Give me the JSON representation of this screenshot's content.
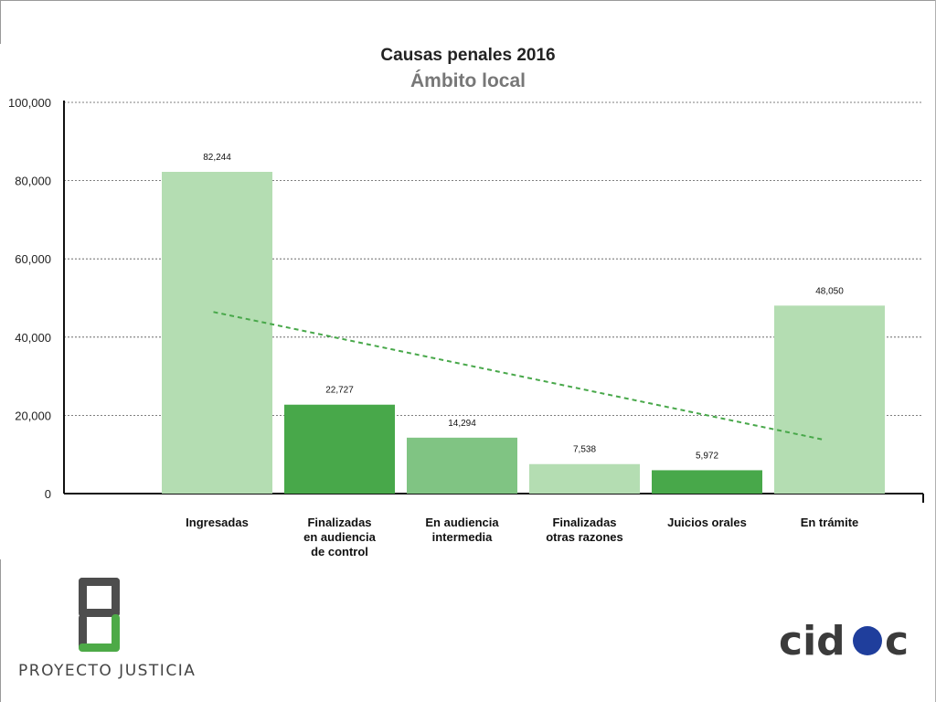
{
  "chart_data": {
    "type": "bar",
    "title": "Causas penales 2016",
    "subtitle": "Ámbito local",
    "categories": [
      [
        "Ingresadas"
      ],
      [
        "Finalizadas",
        "en audiencia",
        "de control"
      ],
      [
        "En audiencia",
        "intermedia"
      ],
      [
        "Finalizadas",
        "otras razones"
      ],
      [
        "Juicios orales"
      ],
      [
        "En trámite"
      ]
    ],
    "values": [
      82244,
      22727,
      14294,
      7538,
      5972,
      48050
    ],
    "value_labels": [
      "82,244",
      "22,727",
      "14,294",
      "7,538",
      "5,972",
      "48,050"
    ],
    "bar_colors": [
      "#b4ddb2",
      "#48a84a",
      "#80c483",
      "#b4ddb2",
      "#48a84a",
      "#b4ddb2"
    ],
    "yticks": [
      0,
      20000,
      40000,
      60000,
      80000,
      100000
    ],
    "ytick_labels": [
      "0",
      "20,000",
      "40,000",
      "60,000",
      "80,000",
      "100,000"
    ],
    "ylim": [
      0,
      100000
    ],
    "grid": "horizontal dashed",
    "trendline": {
      "type": "linear",
      "color": "#48a84a",
      "style": "dashed"
    }
  },
  "logos": {
    "proyecto_justicia": "PROYECTO JUSTICIA",
    "cidac": "cidac"
  },
  "colors": {
    "green_light": "#b4ddb2",
    "green_dark": "#48a84a",
    "green_mid": "#80c483",
    "pj_dark": "#4d4d4d",
    "pj_green": "#4daa47",
    "cidac_gray": "#3b3b3b",
    "cidac_blue": "#1f3e9c"
  }
}
